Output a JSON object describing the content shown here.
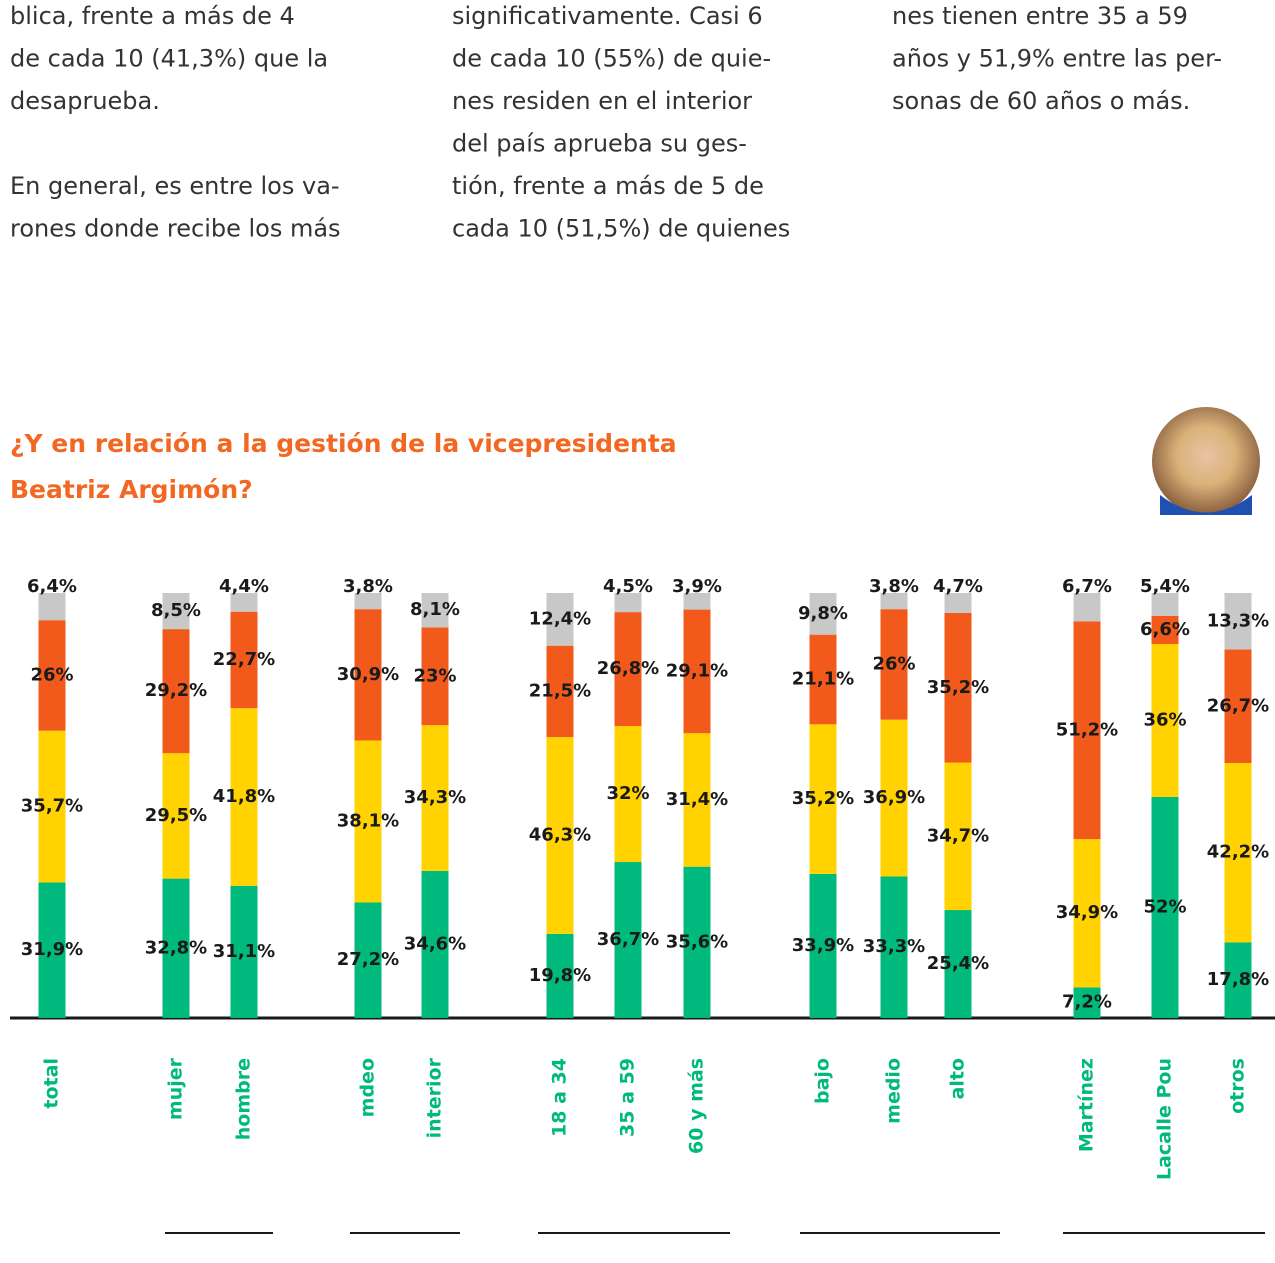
{
  "columns": [
    [
      [
        "blica, frente a más de 4",
        "de cada 10 (41,3%) que la",
        "desaprueba."
      ],
      [
        "En general, es entre los va-",
        "rones donde recibe los más"
      ]
    ],
    [
      [
        "significativamente. Casi 6",
        "de cada 10 (55%) de quie-",
        "nes residen en el interior",
        "del país aprueba su ges-",
        "tión, frente a más de 5 de",
        "cada 10 (51,5%) de quienes"
      ]
    ],
    [
      [
        "nes tienen entre 35 a 59",
        "años y 51,9% entre las per-",
        "sonas de 60 años o más."
      ]
    ]
  ],
  "chart_data": {
    "type": "stacked_bar",
    "title": [
      "¿Y en relación a la gestión de la vicepresidenta",
      "Beatriz Argimón?"
    ],
    "categories": [
      "total",
      "mujer",
      "hombre",
      "mdeo",
      "interior",
      "18 a 34",
      "35 a 59",
      "60 y más",
      "bajo",
      "medio",
      "alto",
      "Martínez",
      "Lacalle Pou",
      "otros"
    ],
    "ylim": [
      0,
      100
    ],
    "series": [
      {
        "color": "#00b97c",
        "values": [
          31.9,
          32.8,
          31.1,
          27.2,
          34.6,
          19.8,
          36.7,
          35.6,
          33.9,
          33.3,
          25.4,
          7.2,
          52,
          17.8
        ],
        "value_labels": [
          "31,9%",
          "32,8%",
          "31,1%",
          "27,2%",
          "34,6%",
          "19,8%",
          "36,7%",
          "35,6%",
          "33,9%",
          "33,3%",
          "25,4%",
          "7,2%",
          "52%",
          "17,8%"
        ]
      },
      {
        "color": "#ffd200",
        "values": [
          35.7,
          29.5,
          41.8,
          38.1,
          34.3,
          46.3,
          32,
          31.4,
          35.2,
          36.9,
          34.7,
          34.9,
          36,
          42.2
        ],
        "value_labels": [
          "35,7%",
          "29,5%",
          "41,8%",
          "38,1%",
          "34,3%",
          "46,3%",
          "32%",
          "31,4%",
          "35,2%",
          "36,9%",
          "34,7%",
          "34,9%",
          "36%",
          "42,2%"
        ]
      },
      {
        "color": "#f15a1a",
        "values": [
          26,
          29.2,
          22.7,
          30.9,
          23,
          21.5,
          26.8,
          29.1,
          21.1,
          26,
          35.2,
          51.2,
          6.6,
          26.7
        ],
        "value_labels": [
          "26%",
          "29,2%",
          "22,7%",
          "30,9%",
          "23%",
          "21,5%",
          "26,8%",
          "29,1%",
          "21,1%",
          "26%",
          "35,2%",
          "51,2%",
          "6,6%",
          "26,7%"
        ]
      },
      {
        "color": "#c8c8c8",
        "values": [
          6.4,
          8.5,
          4.4,
          3.8,
          8.1,
          12.4,
          4.5,
          3.9,
          9.8,
          3.8,
          4.7,
          6.7,
          5.4,
          13.3
        ],
        "value_labels": [
          "6,4%",
          "8,5%",
          "4,4%",
          "3,8%",
          "8,1%",
          "12,4%",
          "4,5%",
          "3,9%",
          "9,8%",
          "3,8%",
          "4,7%",
          "6,7%",
          "5,4%",
          "13,3%"
        ]
      }
    ],
    "category_color": "#00b97c",
    "title_color": "#f26722"
  }
}
